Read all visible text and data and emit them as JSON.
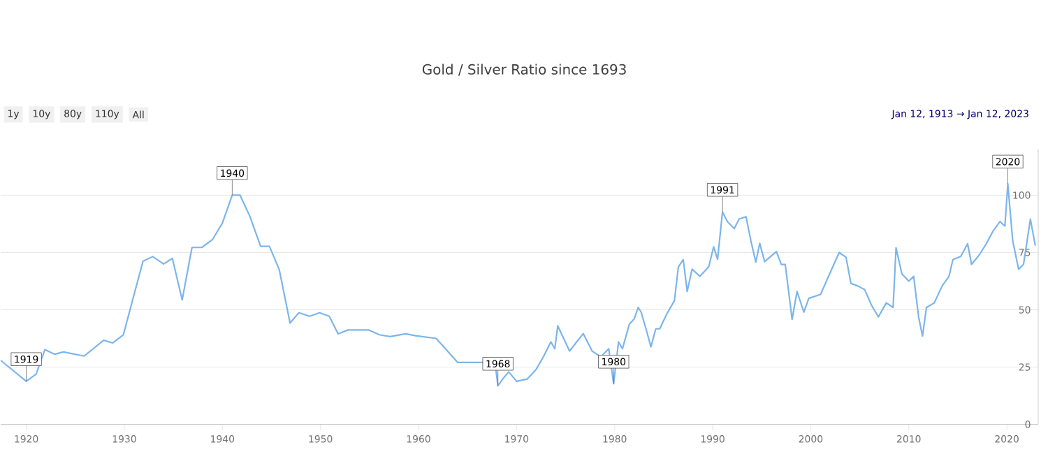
{
  "chart_data": {
    "type": "line",
    "title": "Gold / Silver Ratio since 1693",
    "x": [
      1917.4,
      1920,
      1921,
      1921.9,
      1922.9,
      1923.8,
      1925.9,
      1927.9,
      1928.8,
      1929.9,
      1931.9,
      1932.9,
      1934,
      1934.9,
      1935.9,
      1936.9,
      1937.9,
      1939,
      1940,
      1941,
      1941.8,
      1942.8,
      1943.9,
      1944.8,
      1945.8,
      1946.9,
      1947.8,
      1948.9,
      1949.9,
      1950.9,
      1951.8,
      1952.8,
      1954.9,
      1956,
      1957.1,
      1958.7,
      1959.7,
      1961.8,
      1964,
      1966.3,
      1967.8,
      1968.1,
      1968.6,
      1969.2,
      1970,
      1971.1,
      1972,
      1972.8,
      1973.5,
      1973.9,
      1974.2,
      1975.4,
      1976.8,
      1977.7,
      1978.6,
      1979.4,
      1979.9,
      1980.4,
      1980.8,
      1981.5,
      1982,
      1982.4,
      1982.7,
      1983.2,
      1983.7,
      1984.2,
      1984.6,
      1985.3,
      1986.1,
      1986.5,
      1987,
      1987.4,
      1987.9,
      1988.7,
      1989.6,
      1990.1,
      1990.5,
      1991,
      1991.5,
      1992.2,
      1992.7,
      1993.4,
      1993.9,
      1994.4,
      1994.8,
      1995.3,
      1996.5,
      1997,
      1997.4,
      1998.1,
      1998.6,
      1999.3,
      1999.8,
      2001,
      2001.7,
      2002.9,
      2003.6,
      2004.1,
      2004.8,
      2005.5,
      2006.2,
      2006.9,
      2007.7,
      2008.4,
      2008.7,
      2009.3,
      2010,
      2010.5,
      2011,
      2011.4,
      2011.8,
      2012.6,
      2013.4,
      2014.1,
      2014.5,
      2015.3,
      2016,
      2016.4,
      2017.2,
      2017.9,
      2018.6,
      2019.3,
      2019.8,
      2020.1,
      2020.6,
      2021.2,
      2021.7,
      2022.4,
      2022.9
    ],
    "series": [
      {
        "color": "#7cb5ec",
        "values": [
          27.9,
          18.8,
          21.9,
          32.6,
          30.6,
          31.6,
          29.8,
          36.7,
          35.5,
          39.1,
          71.2,
          73.2,
          70,
          72.4,
          54.3,
          77.2,
          77.2,
          80.7,
          87.8,
          100,
          100,
          90.8,
          77.7,
          77.7,
          67.5,
          44.2,
          48.7,
          47.2,
          48.7,
          47.2,
          39.5,
          41.2,
          41.2,
          39.1,
          38.3,
          39.5,
          38.7,
          37.5,
          27,
          27,
          27,
          16.8,
          19.9,
          22.9,
          18.8,
          19.8,
          24,
          30,
          36,
          33,
          43,
          32,
          39.6,
          32,
          29.5,
          33,
          17.7,
          36,
          33,
          43.7,
          46,
          51,
          49,
          41.7,
          33.8,
          41.7,
          41.7,
          48,
          54,
          68.7,
          71.9,
          58,
          67.7,
          64.6,
          68.8,
          77.5,
          72,
          92.7,
          88.5,
          85.4,
          89.6,
          90.6,
          80,
          70.8,
          79,
          71,
          75.4,
          69.8,
          69.8,
          45.8,
          58,
          49,
          55,
          56.7,
          63.5,
          75,
          72.9,
          61.5,
          60.4,
          58.8,
          52,
          46.9,
          53,
          51,
          77,
          65.6,
          62.5,
          64.6,
          46.9,
          38.5,
          51,
          53,
          60.4,
          64.6,
          71.9,
          73.3,
          78.8,
          69.8,
          74,
          78.8,
          84.4,
          88.5,
          86.5,
          105,
          80,
          67.7,
          69.8,
          89.6,
          78
        ]
      }
    ],
    "xlim": [
      1917.4,
      2023.2
    ],
    "ylim": [
      0,
      120
    ],
    "xticks": [
      1920,
      1930,
      1940,
      1950,
      1960,
      1970,
      1980,
      1990,
      2000,
      2010,
      2020
    ],
    "yticks": [
      0,
      25,
      50,
      75,
      100
    ],
    "grid": "y",
    "annotations": [
      {
        "text": "1919",
        "x": 1920,
        "y": 18.8
      },
      {
        "text": "1940",
        "x": 1941,
        "y": 100
      },
      {
        "text": "1968",
        "x": 1968.1,
        "y": 16.8
      },
      {
        "text": "1980",
        "x": 1979.9,
        "y": 17.7
      },
      {
        "text": "1991",
        "x": 1991,
        "y": 92.7
      },
      {
        "text": "2020",
        "x": 2020.1,
        "y": 105
      },
      "1y",
      "10y",
      "80y",
      "110y",
      "All",
      "Jan 12, 1913 → Jan 12, 2023"
    ]
  }
}
